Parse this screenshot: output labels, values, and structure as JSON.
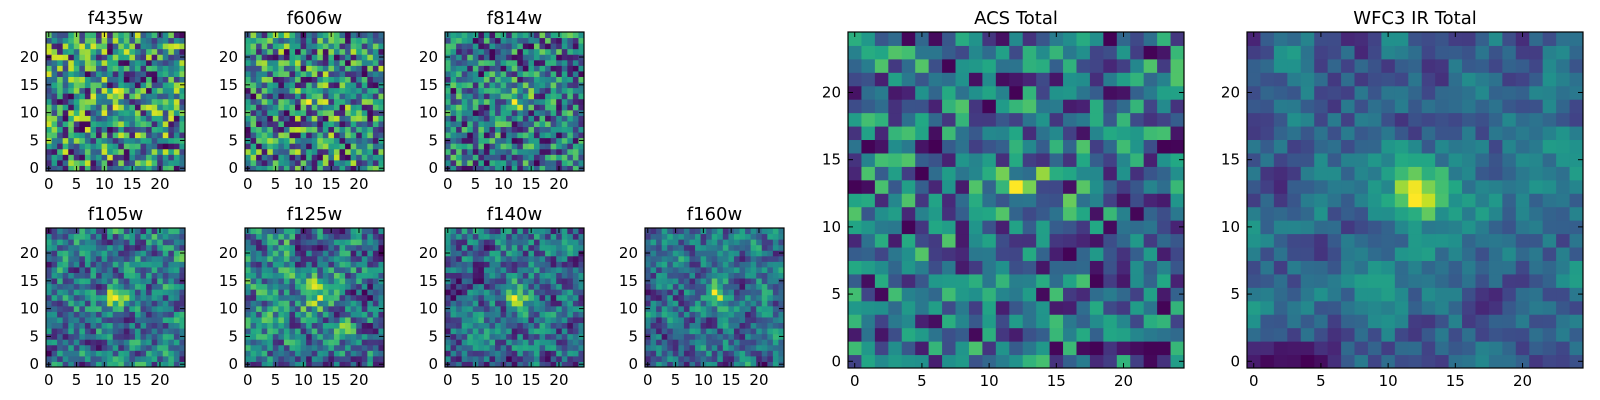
{
  "chart_data": [
    {
      "type": "heatmap",
      "title": "f435w",
      "grid_size": 25,
      "xticks": [
        "0",
        "5",
        "10",
        "15",
        "20"
      ],
      "yticks": [
        "0",
        "5",
        "10",
        "15",
        "20"
      ],
      "colormap": "viridis",
      "seed": 11,
      "smooth": 0,
      "bright_spot": 0.15
    },
    {
      "type": "heatmap",
      "title": "f606w",
      "grid_size": 25,
      "xticks": [
        "0",
        "5",
        "10",
        "15",
        "20"
      ],
      "yticks": [
        "0",
        "5",
        "10",
        "15",
        "20"
      ],
      "colormap": "viridis",
      "seed": 23,
      "smooth": 0,
      "bright_spot": 0.25
    },
    {
      "type": "heatmap",
      "title": "f814w",
      "grid_size": 25,
      "xticks": [
        "0",
        "5",
        "10",
        "15",
        "20"
      ],
      "yticks": [
        "0",
        "5",
        "10",
        "15",
        "20"
      ],
      "colormap": "viridis",
      "seed": 37,
      "smooth": 0,
      "bright_spot": 0.35
    },
    {
      "type": "heatmap",
      "title": "f105w",
      "grid_size": 25,
      "xticks": [
        "0",
        "5",
        "10",
        "15",
        "20"
      ],
      "yticks": [
        "0",
        "5",
        "10",
        "15",
        "20"
      ],
      "colormap": "viridis",
      "seed": 41,
      "smooth": 1,
      "bright_spot": 0.45
    },
    {
      "type": "heatmap",
      "title": "f125w",
      "grid_size": 25,
      "xticks": [
        "0",
        "5",
        "10",
        "15",
        "20"
      ],
      "yticks": [
        "0",
        "5",
        "10",
        "15",
        "20"
      ],
      "colormap": "viridis",
      "seed": 53,
      "smooth": 1,
      "bright_spot": 0.35
    },
    {
      "type": "heatmap",
      "title": "f140w",
      "grid_size": 25,
      "xticks": [
        "0",
        "5",
        "10",
        "15",
        "20"
      ],
      "yticks": [
        "0",
        "5",
        "10",
        "15",
        "20"
      ],
      "colormap": "viridis",
      "seed": 67,
      "smooth": 1,
      "bright_spot": 0.4
    },
    {
      "type": "heatmap",
      "title": "f160w",
      "grid_size": 25,
      "xticks": [
        "0",
        "5",
        "10",
        "15",
        "20"
      ],
      "yticks": [
        "0",
        "5",
        "10",
        "15",
        "20"
      ],
      "colormap": "viridis",
      "seed": 79,
      "smooth": 1,
      "bright_spot": 0.45
    },
    {
      "type": "heatmap",
      "title": "ACS Total",
      "grid_size": 25,
      "xticks": [
        "0",
        "5",
        "10",
        "15",
        "20"
      ],
      "yticks": [
        "0",
        "5",
        "10",
        "15",
        "20"
      ],
      "colormap": "viridis",
      "seed": 83,
      "smooth": 0,
      "bright_spot": 0.45
    },
    {
      "type": "heatmap",
      "title": "WFC3 IR Total",
      "grid_size": 25,
      "xticks": [
        "0",
        "5",
        "10",
        "15",
        "20"
      ],
      "yticks": [
        "0",
        "5",
        "10",
        "15",
        "20"
      ],
      "colormap": "viridis",
      "seed": 97,
      "smooth": 2,
      "bright_spot": 0.7
    }
  ]
}
